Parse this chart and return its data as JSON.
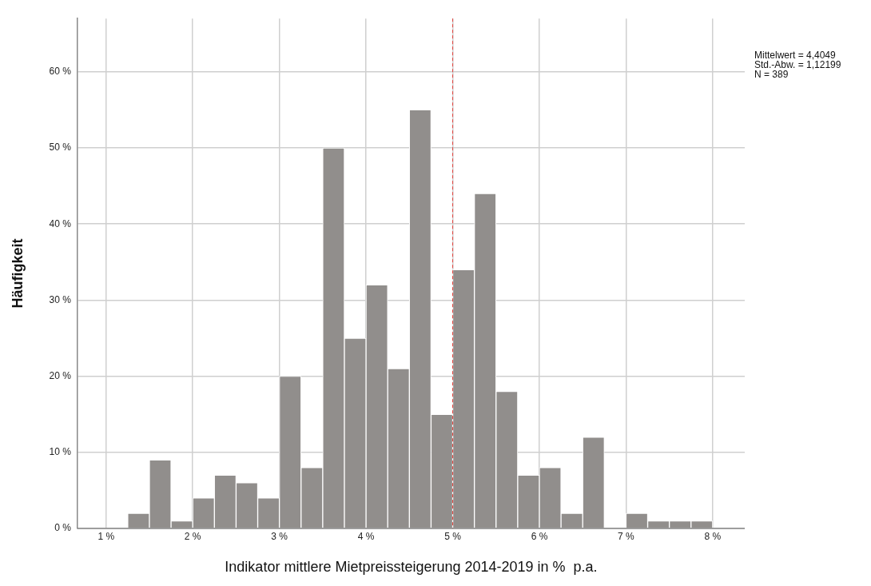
{
  "chart_data": {
    "type": "histogram",
    "xlabel": "Indikator mittlere Mietpreissteigerung 2014-2019 in %  p.a.",
    "ylabel": "Häufigkeit",
    "annotations": [
      "Mittelwert = 4,4049",
      "Std.-Abw. = 1,12199",
      "N = 389"
    ],
    "bins": [
      1.25,
      1.5,
      1.75,
      2,
      2.25,
      2.5,
      2.75,
      3,
      3.25,
      3.5,
      3.75,
      4,
      4.25,
      4.5,
      4.75,
      5,
      5.25,
      5.5,
      5.75,
      6,
      6.25,
      6.5,
      6.75,
      7,
      7.25,
      7.5,
      7.75,
      8
    ],
    "values": [
      2,
      9,
      1,
      4,
      7,
      6,
      4,
      20,
      8,
      50,
      25,
      32,
      21,
      55,
      15,
      34,
      44,
      18,
      7,
      8,
      2,
      12,
      0,
      2,
      1,
      1,
      1
    ],
    "color": "#918e8c",
    "xlim": [
      0.67,
      8.37
    ],
    "xticks": [
      {
        "value": 1,
        "label": "1 %"
      },
      {
        "value": 2,
        "label": "2 %"
      },
      {
        "value": 3,
        "label": "3 %"
      },
      {
        "value": 4,
        "label": "4 %"
      },
      {
        "value": 5,
        "label": "5 %"
      },
      {
        "value": 6,
        "label": "6 %"
      },
      {
        "value": 7,
        "label": "7 %"
      },
      {
        "value": 8,
        "label": "8 %"
      }
    ],
    "ylim": [
      0,
      67
    ],
    "yticks": [
      {
        "value": 0,
        "label": "0 %"
      },
      {
        "value": 10,
        "label": "10 %"
      },
      {
        "value": 20,
        "label": "20 %"
      },
      {
        "value": 30,
        "label": "30 %"
      },
      {
        "value": 40,
        "label": "40 %"
      },
      {
        "value": 50,
        "label": "50 %"
      },
      {
        "value": 60,
        "label": "60 %"
      }
    ],
    "ref_lines": [
      {
        "axis": "x",
        "value": 5,
        "color": "#e0423c",
        "line_style": "dashed"
      }
    ],
    "grid": true,
    "legend": false
  }
}
